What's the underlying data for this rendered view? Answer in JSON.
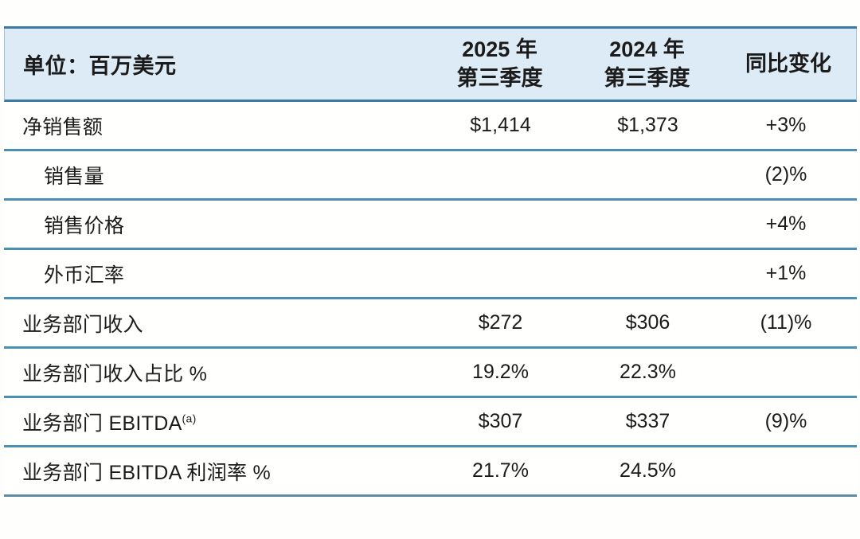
{
  "colors": {
    "header_background": "#dcebf6",
    "divider_blue": "#4a90b4",
    "top_border_blue": "#3a7aa4",
    "text": "#1b1b1b"
  },
  "table": {
    "unit_label": "单位：百万美元",
    "col_2025_line1": "2025 年",
    "col_2025_line2": "第三季度",
    "col_2024_line1": "2024 年",
    "col_2024_line2": "第三季度",
    "col_yoy": "同比变化",
    "rows": [
      {
        "label": "净销售额",
        "indent": false,
        "q3_2025": "$1,414",
        "q3_2024": "$1,373",
        "yoy": "+3%"
      },
      {
        "label": "销售量",
        "indent": true,
        "q3_2025": "",
        "q3_2024": "",
        "yoy": "(2)%"
      },
      {
        "label": "销售价格",
        "indent": true,
        "q3_2025": "",
        "q3_2024": "",
        "yoy": "+4%"
      },
      {
        "label": "外币汇率",
        "indent": true,
        "q3_2025": "",
        "q3_2024": "",
        "yoy": "+1%"
      },
      {
        "label": "业务部门收入",
        "indent": false,
        "q3_2025": "$272",
        "q3_2024": "$306",
        "yoy": "(11)%"
      },
      {
        "label": "业务部门收入占比 %",
        "indent": false,
        "q3_2025": "19.2%",
        "q3_2024": "22.3%",
        "yoy": ""
      },
      {
        "label": "业务部门 EBITDA",
        "sup": "(a)",
        "indent": false,
        "q3_2025": "$307",
        "q3_2024": "$337",
        "yoy": "(9)%"
      },
      {
        "label": "业务部门 EBITDA 利润率 %",
        "indent": false,
        "q3_2025": "21.7%",
        "q3_2024": "24.5%",
        "yoy": ""
      }
    ]
  },
  "chart_data": {
    "type": "table",
    "title": "单位：百万美元",
    "columns": [
      "单位：百万美元",
      "2025 年 第三季度",
      "2024 年 第三季度",
      "同比变化"
    ],
    "rows": [
      [
        "净销售额",
        "$1,414",
        "$1,373",
        "+3%"
      ],
      [
        "销售量",
        "",
        "",
        "(2)%"
      ],
      [
        "销售价格",
        "",
        "",
        "+4%"
      ],
      [
        "外币汇率",
        "",
        "",
        "+1%"
      ],
      [
        "业务部门收入",
        "$272",
        "$306",
        "(11)%"
      ],
      [
        "业务部门收入占比 %",
        "19.2%",
        "22.3%",
        ""
      ],
      [
        "业务部门 EBITDA(a)",
        "$307",
        "$337",
        "(9)%"
      ],
      [
        "业务部门 EBITDA 利润率 %",
        "21.7%",
        "24.5%",
        ""
      ]
    ],
    "layout_hints": {
      "header_fill": "#dcebf6",
      "row_dividers": true,
      "value_columns_alignment": "center",
      "indented_rows": [
        "销售量",
        "销售价格",
        "外币汇率"
      ]
    }
  }
}
